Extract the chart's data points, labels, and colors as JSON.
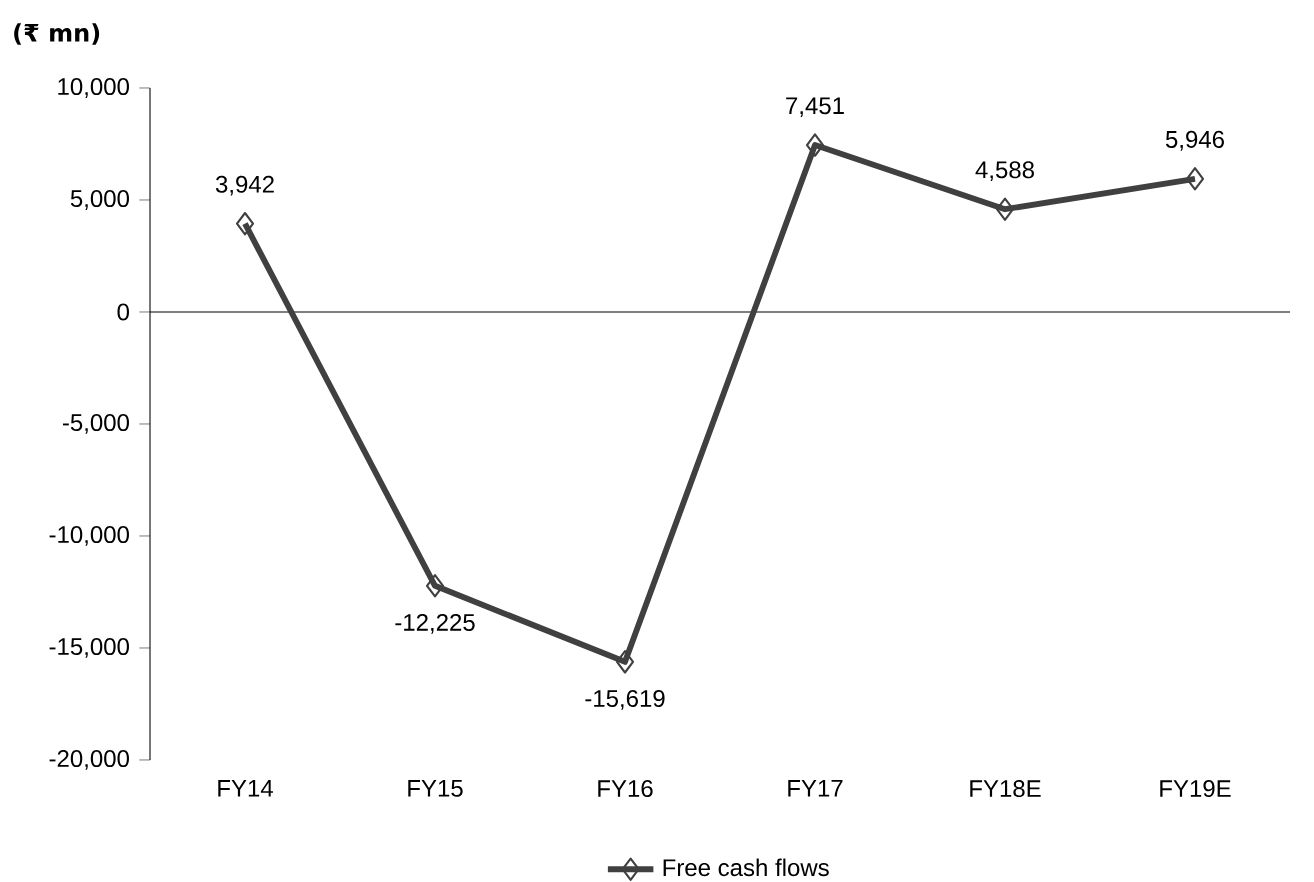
{
  "chart_data": {
    "type": "line",
    "title": "(₹ mn)",
    "categories": [
      "FY14",
      "FY15",
      "FY16",
      "FY17",
      "FY18E",
      "FY19E"
    ],
    "series": [
      {
        "name": "Free cash flows",
        "color": "#404040",
        "values": [
          3942,
          -12225,
          -15619,
          7451,
          4588,
          5946
        ],
        "value_labels": [
          "3,942",
          "-12,225",
          "-15,619",
          "7,451",
          "4,588",
          "5,946"
        ]
      }
    ],
    "ylim": [
      -20000,
      10000
    ],
    "yticks": [
      {
        "value": -20000,
        "label": "-20,000"
      },
      {
        "value": -15000,
        "label": "-15,000"
      },
      {
        "value": -10000,
        "label": "-10,000"
      },
      {
        "value": -5000,
        "label": "-5,000"
      },
      {
        "value": 0,
        "label": "0"
      },
      {
        "value": 5000,
        "label": "5,000"
      },
      {
        "value": 10000,
        "label": "10,000"
      }
    ],
    "ref_lines": [
      {
        "axis": "y",
        "value": 0,
        "color": "#000000"
      }
    ],
    "marker": "diamond",
    "legend": "bottom"
  }
}
